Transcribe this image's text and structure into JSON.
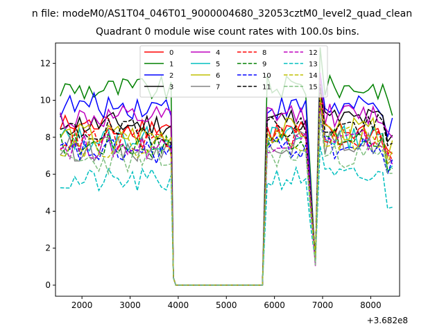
{
  "chart_data": {
    "type": "line",
    "suptitle": "n file: modeM0/AS1T04_046T01_9000004680_32053cztM0_level2_quad_clean",
    "title": "Quadrant 0 module wise count rates with 100.0s bins.",
    "xlabel": "",
    "ylabel": "",
    "x_offset_label": "+3.682e8",
    "xlim": [
      1450,
      8600
    ],
    "ylim": [
      -0.6,
      13.1
    ],
    "x_ticks": [
      2000,
      3000,
      4000,
      5000,
      6000,
      7000,
      8000
    ],
    "y_ticks": [
      0,
      2,
      4,
      6,
      8,
      10,
      12
    ],
    "x_tick_labels": [
      "2000",
      "3000",
      "4000",
      "5000",
      "6000",
      "7000",
      "8000"
    ],
    "y_tick_labels": [
      "0",
      "2",
      "4",
      "6",
      "8",
      "10",
      "12"
    ],
    "grid": false,
    "legend_placement": "upper-center",
    "legend_columns": 4,
    "segments": {
      "x1": [
        1550,
        3850
      ],
      "gap1": [
        3950,
        5750
      ],
      "x2": [
        5850,
        8450
      ]
    },
    "series": [
      {
        "name": "0",
        "color": "#ff0000",
        "dash": "solid",
        "level1": 8.6,
        "level2": 8.3,
        "seed": 1
      },
      {
        "name": "1",
        "color": "#008000",
        "dash": "solid",
        "level1": 10.6,
        "level2": 10.7,
        "seed": 2
      },
      {
        "name": "2",
        "color": "#0000ff",
        "dash": "solid",
        "level1": 9.7,
        "level2": 9.6,
        "seed": 3
      },
      {
        "name": "3",
        "color": "#000000",
        "dash": "solid",
        "level1": 8.7,
        "level2": 9.0,
        "seed": 4
      },
      {
        "name": "4",
        "color": "#bf00bf",
        "dash": "solid",
        "level1": 9.0,
        "level2": 9.2,
        "seed": 5
      },
      {
        "name": "5",
        "color": "#00bfbf",
        "dash": "solid",
        "level1": 7.9,
        "level2": 8.0,
        "seed": 6
      },
      {
        "name": "6",
        "color": "#bfbf00",
        "dash": "solid",
        "level1": 8.1,
        "level2": 8.4,
        "seed": 7
      },
      {
        "name": "7",
        "color": "#808080",
        "dash": "solid",
        "level1": 7.4,
        "level2": 7.7,
        "seed": 8
      },
      {
        "name": "8",
        "color": "#ff0000",
        "dash": "dashed",
        "level1": 7.9,
        "level2": 8.0,
        "seed": 9
      },
      {
        "name": "9",
        "color": "#008000",
        "dash": "dashed",
        "level1": 7.6,
        "level2": 7.9,
        "seed": 10
      },
      {
        "name": "10",
        "color": "#0000ff",
        "dash": "dashed",
        "level1": 7.2,
        "level2": 7.4,
        "seed": 11
      },
      {
        "name": "11",
        "color": "#000000",
        "dash": "dashed",
        "level1": 8.3,
        "level2": 8.6,
        "seed": 12
      },
      {
        "name": "12",
        "color": "#bf00bf",
        "dash": "dashed",
        "level1": 7.5,
        "level2": 7.8,
        "seed": 13
      },
      {
        "name": "13",
        "color": "#00bfbf",
        "dash": "dashed",
        "level1": 5.6,
        "level2": 5.8,
        "seed": 14
      },
      {
        "name": "14",
        "color": "#bfbf00",
        "dash": "dashed",
        "level1": 7.6,
        "level2": 7.9,
        "seed": 15
      },
      {
        "name": "15",
        "color": "#7fbf7f",
        "dash": "dashed",
        "level1": 6.7,
        "level2": 7.0,
        "seed": 16
      }
    ]
  }
}
